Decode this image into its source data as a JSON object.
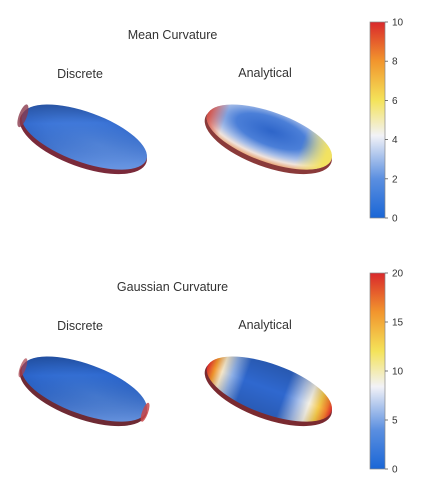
{
  "panels": [
    {
      "id": "mean",
      "title": "Mean Curvature",
      "left_label": "Discrete",
      "right_label": "Analytical",
      "colorbar": {
        "min": 0,
        "max": 10,
        "ticks": [
          "0",
          "2",
          "4",
          "6",
          "8",
          "10"
        ]
      }
    },
    {
      "id": "gauss",
      "title": "Gaussian Curvature",
      "left_label": "Discrete",
      "right_label": "Analytical",
      "colorbar": {
        "min": 0,
        "max": 20,
        "ticks": [
          "0",
          "5",
          "10",
          "15",
          "20"
        ]
      }
    }
  ],
  "colormap": [
    "#1a66d6",
    "#5b8fe0",
    "#f2f2f7",
    "#f4e35a",
    "#f2962d",
    "#d9282c"
  ]
}
